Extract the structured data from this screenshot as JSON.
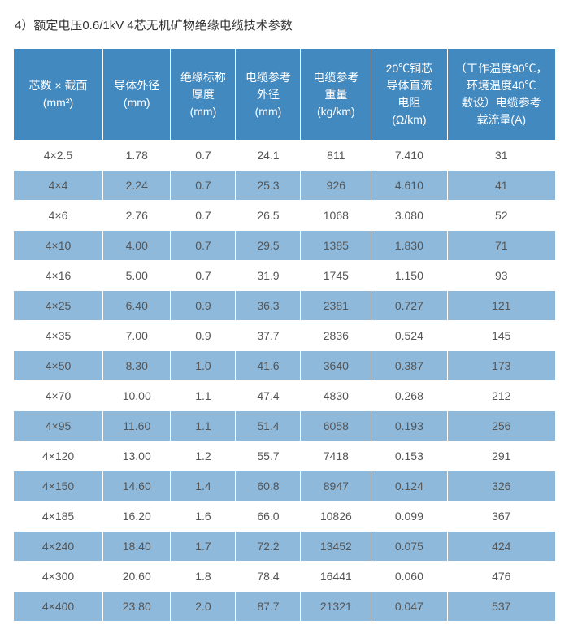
{
  "title": "4）额定电压0.6/1kV  4芯无机矿物绝缘电缆技术参数",
  "table": {
    "columns": [
      "芯数 × 截面\n(mm²)",
      "导体外径\n(mm)",
      "绝缘标称\n厚度\n(mm)",
      "电缆参考\n外径\n(mm)",
      "电缆参考\n重量\n(kg/km)",
      "20℃铜芯\n导体直流\n电阻\n(Ω/km)",
      "（工作温度90℃，\n环境温度40℃\n敷设）电缆参考\n载流量(A)"
    ],
    "rows": [
      [
        "4×2.5",
        "1.78",
        "0.7",
        "24.1",
        "811",
        "7.410",
        "31"
      ],
      [
        "4×4",
        "2.24",
        "0.7",
        "25.3",
        "926",
        "4.610",
        "41"
      ],
      [
        "4×6",
        "2.76",
        "0.7",
        "26.5",
        "1068",
        "3.080",
        "52"
      ],
      [
        "4×10",
        "4.00",
        "0.7",
        "29.5",
        "1385",
        "1.830",
        "71"
      ],
      [
        "4×16",
        "5.00",
        "0.7",
        "31.9",
        "1745",
        "1.150",
        "93"
      ],
      [
        "4×25",
        "6.40",
        "0.9",
        "36.3",
        "2381",
        "0.727",
        "121"
      ],
      [
        "4×35",
        "7.00",
        "0.9",
        "37.7",
        "2836",
        "0.524",
        "145"
      ],
      [
        "4×50",
        "8.30",
        "1.0",
        "41.6",
        "3640",
        "0.387",
        "173"
      ],
      [
        "4×70",
        "10.00",
        "1.1",
        "47.4",
        "4830",
        "0.268",
        "212"
      ],
      [
        "4×95",
        "11.60",
        "1.1",
        "51.4",
        "6058",
        "0.193",
        "256"
      ],
      [
        "4×120",
        "13.00",
        "1.2",
        "55.7",
        "7418",
        "0.153",
        "291"
      ],
      [
        "4×150",
        "14.60",
        "1.4",
        "60.8",
        "8947",
        "0.124",
        "326"
      ],
      [
        "4×185",
        "16.20",
        "1.6",
        "66.0",
        "10826",
        "0.099",
        "367"
      ],
      [
        "4×240",
        "18.40",
        "1.7",
        "72.2",
        "13452",
        "0.075",
        "424"
      ],
      [
        "4×300",
        "20.60",
        "1.8",
        "78.4",
        "16441",
        "0.060",
        "476"
      ],
      [
        "4×400",
        "23.80",
        "2.0",
        "87.7",
        "21321",
        "0.047",
        "537"
      ]
    ],
    "header_bg": "#4289c0",
    "header_color": "#ffffff",
    "row_odd_bg": "#ffffff",
    "row_even_bg": "#8eb9db",
    "border_color": "#ffffff",
    "font_size": 14,
    "header_font_size": 14
  }
}
